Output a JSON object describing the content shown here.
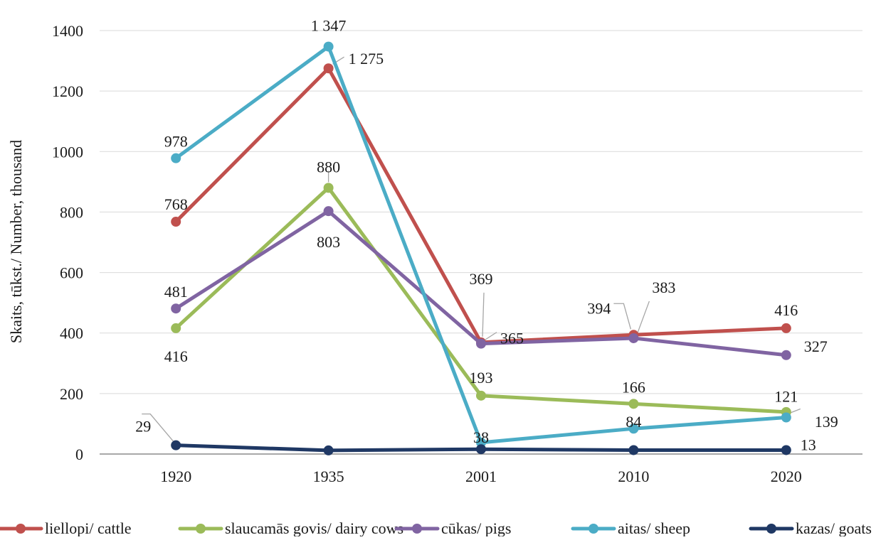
{
  "chart_data": {
    "type": "line",
    "title": "",
    "xlabel": "",
    "ylabel": "Skaits, tūkst./ Number, thousand",
    "categories": [
      "1920",
      "1935",
      "2001",
      "2010",
      "2020"
    ],
    "ylim": [
      0,
      1400
    ],
    "yticks": [
      0,
      200,
      400,
      600,
      800,
      1000,
      1200,
      1400
    ],
    "grid": true,
    "legend_position": "bottom",
    "series": [
      {
        "name": "liellopi/ cattle",
        "color": "#c0504d",
        "values": [
          768,
          1275,
          369,
          394,
          416
        ],
        "labels": [
          "768",
          "1 275",
          "369",
          "394",
          "416"
        ]
      },
      {
        "name": "slaucamās govis/ dairy cows",
        "color": "#9bbb59",
        "values": [
          416,
          880,
          193,
          166,
          139
        ],
        "labels": [
          "416",
          "880",
          "193",
          "166",
          "139"
        ]
      },
      {
        "name": "cūkas/ pigs",
        "color": "#8064a2",
        "values": [
          481,
          803,
          365,
          383,
          327
        ],
        "labels": [
          "481",
          "803",
          "365",
          "383",
          "327"
        ]
      },
      {
        "name": "aitas/ sheep",
        "color": "#4bacc6",
        "values": [
          978,
          1347,
          38,
          84,
          121
        ],
        "labels": [
          "978",
          "1 347",
          "38",
          "84",
          "121"
        ]
      },
      {
        "name": "kazas/ goats",
        "color": "#1f3864",
        "values": [
          29,
          12,
          16,
          13,
          13
        ],
        "labels": [
          "29",
          null,
          null,
          null,
          "13"
        ]
      }
    ]
  }
}
